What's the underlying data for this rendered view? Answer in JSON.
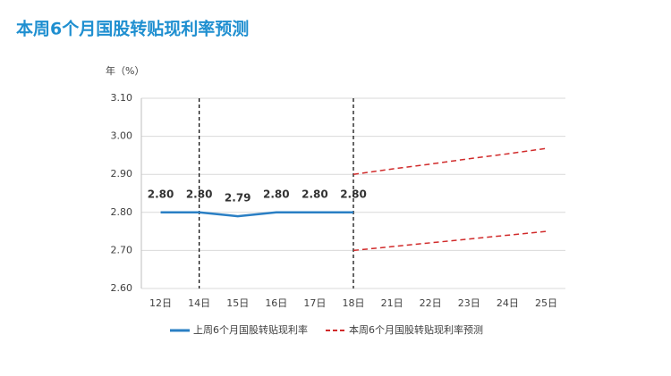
{
  "chart_data": {
    "type": "line",
    "title": "本周6个月国股转贴现利率预测",
    "y_label": "年（%）",
    "categories": [
      "12日",
      "14日",
      "15日",
      "16日",
      "17日",
      "18日",
      "21日",
      "22日",
      "23日",
      "24日",
      "25日"
    ],
    "series": [
      {
        "name": "上周6个月国股转贴现利率",
        "color": "#2a7fc4",
        "dash": false,
        "values": [
          2.8,
          2.8,
          2.79,
          2.8,
          2.8,
          2.8,
          null,
          null,
          null,
          null,
          null
        ],
        "value_labels": [
          "2.80",
          "2.80",
          "2.79",
          "2.80",
          "2.80",
          "2.80",
          null,
          null,
          null,
          null,
          null
        ]
      },
      {
        "name": "本周6个月国股转贴现利率预测",
        "color": "#d12b2b",
        "dash": true,
        "values": [
          null,
          null,
          null,
          null,
          null,
          2.9,
          2.914,
          2.927,
          2.941,
          2.954,
          2.968
        ],
        "lower_values": [
          null,
          null,
          null,
          null,
          null,
          2.7,
          2.71,
          2.72,
          2.73,
          2.74,
          2.75
        ]
      }
    ],
    "vlines": [
      1,
      5
    ],
    "ylim": [
      2.6,
      3.1
    ],
    "yticks": [
      {
        "value": 2.6,
        "label": "2.60"
      },
      {
        "value": 2.7,
        "label": "2.70"
      },
      {
        "value": 2.8,
        "label": "2.80"
      },
      {
        "value": 2.9,
        "label": "2.90"
      },
      {
        "value": 3.0,
        "label": "3.00"
      },
      {
        "value": 3.1,
        "label": "3.10"
      }
    ],
    "grid": true
  }
}
